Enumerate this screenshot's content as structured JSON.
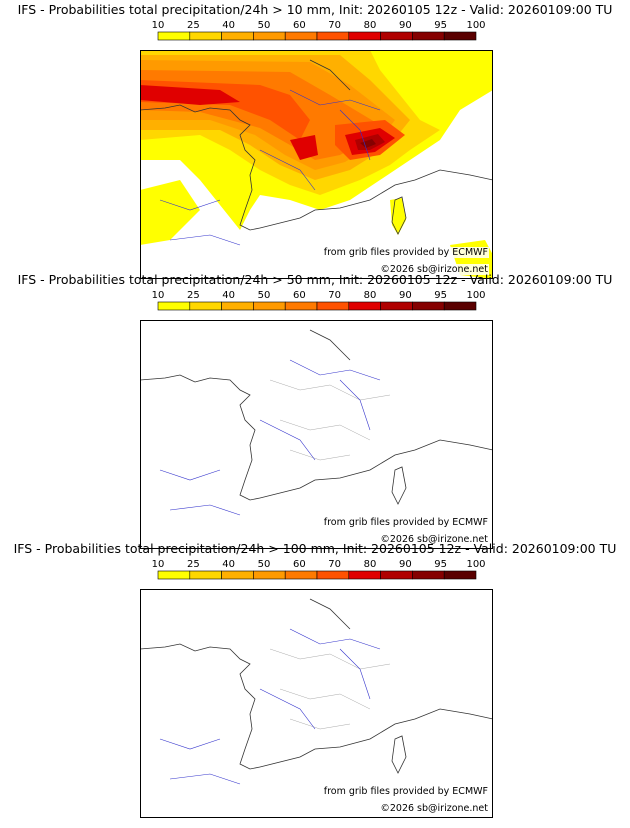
{
  "color_scale": {
    "ticks": [
      "10",
      "25",
      "40",
      "50",
      "60",
      "70",
      "80",
      "90",
      "95",
      "100"
    ],
    "colors": [
      "#ffff00",
      "#ffd700",
      "#ffb000",
      "#ff9a00",
      "#ff7a00",
      "#ff5200",
      "#e00000",
      "#b00000",
      "#850000",
      "#5a0000"
    ]
  },
  "panels": [
    {
      "title": "IFS - Probabilities total precipitation/24h > 10 mm, Init: 20260105 12z - Valid: 20260109:00 TU",
      "credit_grib": "from grib files provided by ECMWF",
      "credit_copyright": "©2026 sb@irizone.net",
      "threshold_mm": 10
    },
    {
      "title": "IFS - Probabilities total precipitation/24h > 50 mm, Init: 20260105 12z - Valid: 20260109:00 TU",
      "credit_grib": "from grib files provided by ECMWF",
      "credit_copyright": "©2026 sb@irizone.net",
      "threshold_mm": 50
    },
    {
      "title": "IFS - Probabilities total precipitation/24h > 100 mm, Init: 20260105 12z - Valid: 20260109:00 TU",
      "credit_grib": "from grib files provided by ECMWF",
      "credit_copyright": "©2026 sb@irizone.net",
      "threshold_mm": 100
    }
  ]
}
